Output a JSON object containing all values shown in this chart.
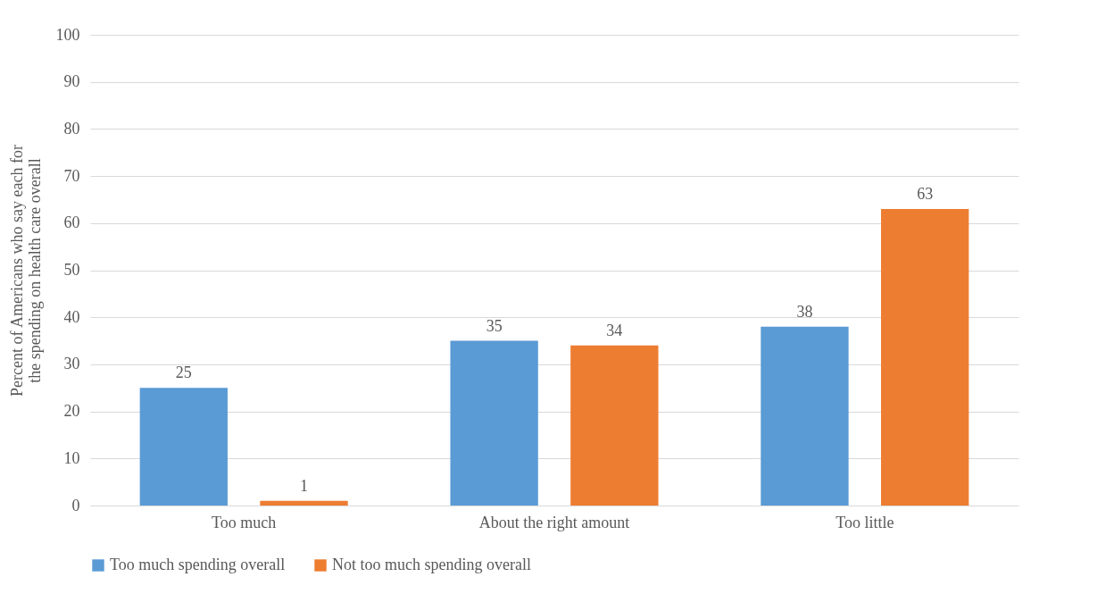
{
  "chart_data": {
    "type": "bar",
    "ylabel": "Percent of Americans who say each for the spending on health care overall",
    "categories": [
      "Too much",
      "About the right amount",
      "Too little"
    ],
    "series": [
      {
        "name": "Too much spending overall",
        "color": "#5b9bd5",
        "values": [
          25,
          35,
          38
        ]
      },
      {
        "name": "Not too much spending overall",
        "color": "#ed7d31",
        "values": [
          1,
          34,
          63
        ]
      }
    ],
    "ylim": [
      0,
      100
    ],
    "yticks": [
      0,
      10,
      20,
      30,
      40,
      50,
      60,
      70,
      80,
      90,
      100
    ],
    "grid": "y",
    "legend": "bottom",
    "data_labels": true
  }
}
